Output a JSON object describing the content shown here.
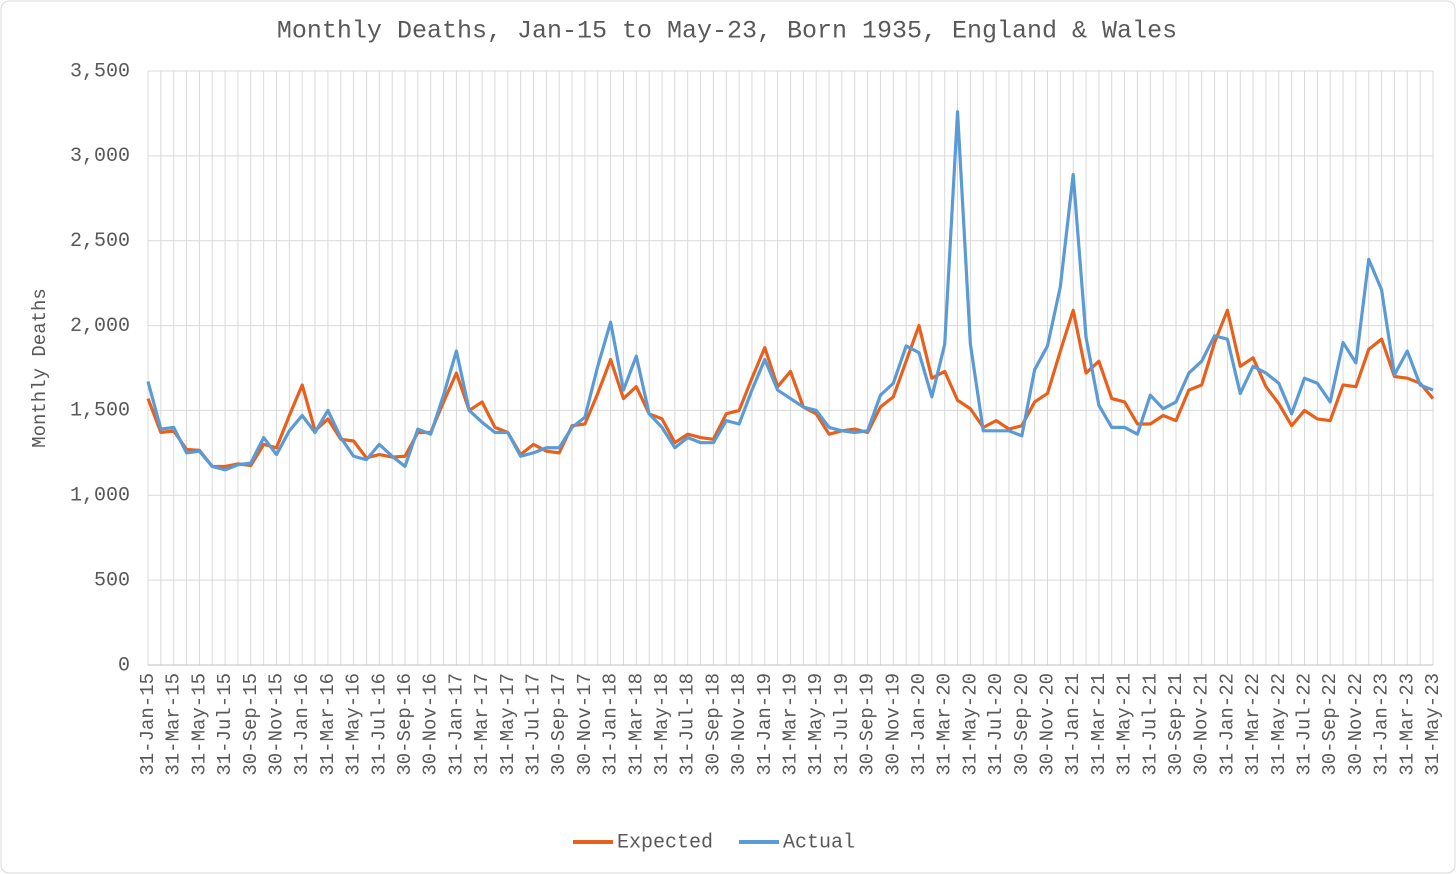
{
  "chart_data": {
    "type": "line",
    "title": "Monthly Deaths, Jan-15 to May-23, Born 1935, England & Wales",
    "y_label": "Monthly Deaths",
    "categories": [
      "31-Jan-15",
      null,
      "31-Mar-15",
      null,
      "31-May-15",
      null,
      "31-Jul-15",
      null,
      "30-Sep-15",
      null,
      "30-Nov-15",
      null,
      "31-Jan-16",
      null,
      "31-Mar-16",
      null,
      "31-May-16",
      null,
      "31-Jul-16",
      null,
      "30-Sep-16",
      null,
      "30-Nov-16",
      null,
      "31-Jan-17",
      null,
      "31-Mar-17",
      null,
      "31-May-17",
      null,
      "31-Jul-17",
      null,
      "30-Sep-17",
      null,
      "30-Nov-17",
      null,
      "31-Jan-18",
      null,
      "31-Mar-18",
      null,
      "31-May-18",
      null,
      "31-Jul-18",
      null,
      "30-Sep-18",
      null,
      "30-Nov-18",
      null,
      "31-Jan-19",
      null,
      "31-Mar-19",
      null,
      "31-May-19",
      null,
      "31-Jul-19",
      null,
      "30-Sep-19",
      null,
      "30-Nov-19",
      null,
      "31-Jan-20",
      null,
      "31-Mar-20",
      null,
      "31-May-20",
      null,
      "31-Jul-20",
      null,
      "30-Sep-20",
      null,
      "30-Nov-20",
      null,
      "31-Jan-21",
      null,
      "31-Mar-21",
      null,
      "31-May-21",
      null,
      "31-Jul-21",
      null,
      "30-Sep-21",
      null,
      "30-Nov-21",
      null,
      "31-Jan-22",
      null,
      "31-Mar-22",
      null,
      "31-May-22",
      null,
      "31-Jul-22",
      null,
      "30-Sep-22",
      null,
      "30-Nov-22",
      null,
      "31-Jan-23",
      null,
      "31-Mar-23",
      null,
      "31-May-23"
    ],
    "series": [
      {
        "name": "Expected",
        "color": "#e8601c",
        "values": [
          1570,
          1370,
          1380,
          1270,
          1265,
          1170,
          1170,
          1185,
          1175,
          1300,
          1280,
          1470,
          1650,
          1380,
          1450,
          1330,
          1320,
          1220,
          1240,
          1225,
          1230,
          1370,
          1370,
          1550,
          1720,
          1500,
          1550,
          1400,
          1370,
          1240,
          1300,
          1260,
          1250,
          1410,
          1420,
          1600,
          1800,
          1570,
          1640,
          1480,
          1450,
          1310,
          1360,
          1340,
          1330,
          1480,
          1500,
          1690,
          1870,
          1640,
          1730,
          1520,
          1480,
          1360,
          1380,
          1390,
          1370,
          1520,
          1580,
          1790,
          2000,
          1690,
          1730,
          1560,
          1510,
          1400,
          1440,
          1390,
          1410,
          1550,
          1600,
          1850,
          2090,
          1720,
          1790,
          1570,
          1550,
          1420,
          1420,
          1470,
          1440,
          1620,
          1650,
          1900,
          2090,
          1760,
          1810,
          1640,
          1540,
          1410,
          1500,
          1450,
          1440,
          1650,
          1640,
          1860,
          1920,
          1700,
          1690,
          1660,
          1570
        ]
      },
      {
        "name": "Actual",
        "color": "#5b9bd5",
        "values": [
          1670,
          1390,
          1400,
          1250,
          1260,
          1170,
          1150,
          1180,
          1190,
          1340,
          1240,
          1380,
          1470,
          1370,
          1500,
          1340,
          1230,
          1210,
          1300,
          1230,
          1170,
          1390,
          1360,
          1590,
          1850,
          1500,
          1430,
          1370,
          1370,
          1230,
          1250,
          1280,
          1280,
          1400,
          1460,
          1760,
          2020,
          1620,
          1820,
          1480,
          1400,
          1280,
          1340,
          1310,
          1310,
          1440,
          1420,
          1620,
          1800,
          1620,
          1570,
          1520,
          1500,
          1400,
          1380,
          1370,
          1380,
          1590,
          1660,
          1880,
          1840,
          1580,
          1890,
          3260,
          1890,
          1380,
          1380,
          1380,
          1350,
          1740,
          1880,
          2230,
          2890,
          1930,
          1530,
          1400,
          1400,
          1360,
          1590,
          1510,
          1550,
          1720,
          1790,
          1940,
          1920,
          1600,
          1760,
          1720,
          1660,
          1480,
          1690,
          1660,
          1550,
          1900,
          1780,
          2390,
          2210,
          1710,
          1850,
          1650,
          1620
        ]
      }
    ],
    "ylim": [
      0,
      3500
    ],
    "yticks": [
      0,
      500,
      {
        "value": 1000,
        "label": "1,000"
      },
      {
        "value": 1500,
        "label": "1,500"
      },
      {
        "value": 2000,
        "label": "2,000"
      },
      {
        "value": 2500,
        "label": "2,500"
      },
      {
        "value": 3000,
        "label": "3,000"
      },
      {
        "value": 3500,
        "label": "3,500"
      }
    ],
    "grid": true,
    "legend": "bottom"
  }
}
